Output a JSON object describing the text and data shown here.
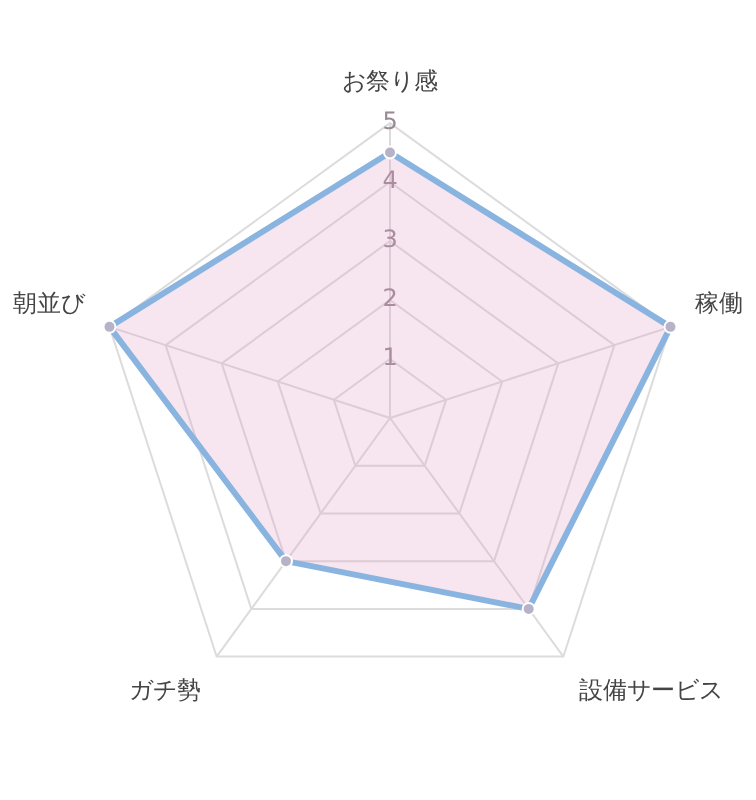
{
  "chart_data": {
    "type": "radar",
    "categories": [
      "お祭り感",
      "稼働",
      "設備サービス",
      "ガチ勢",
      "朝並び"
    ],
    "series": [
      {
        "color": "#8ab4e0",
        "values": [
          4.5,
          5,
          4,
          3,
          5
        ]
      }
    ],
    "ylim": [
      0,
      5
    ],
    "yticks": [
      1,
      2,
      3,
      4,
      5
    ],
    "grid": true,
    "legend": false,
    "marker": "circle"
  }
}
